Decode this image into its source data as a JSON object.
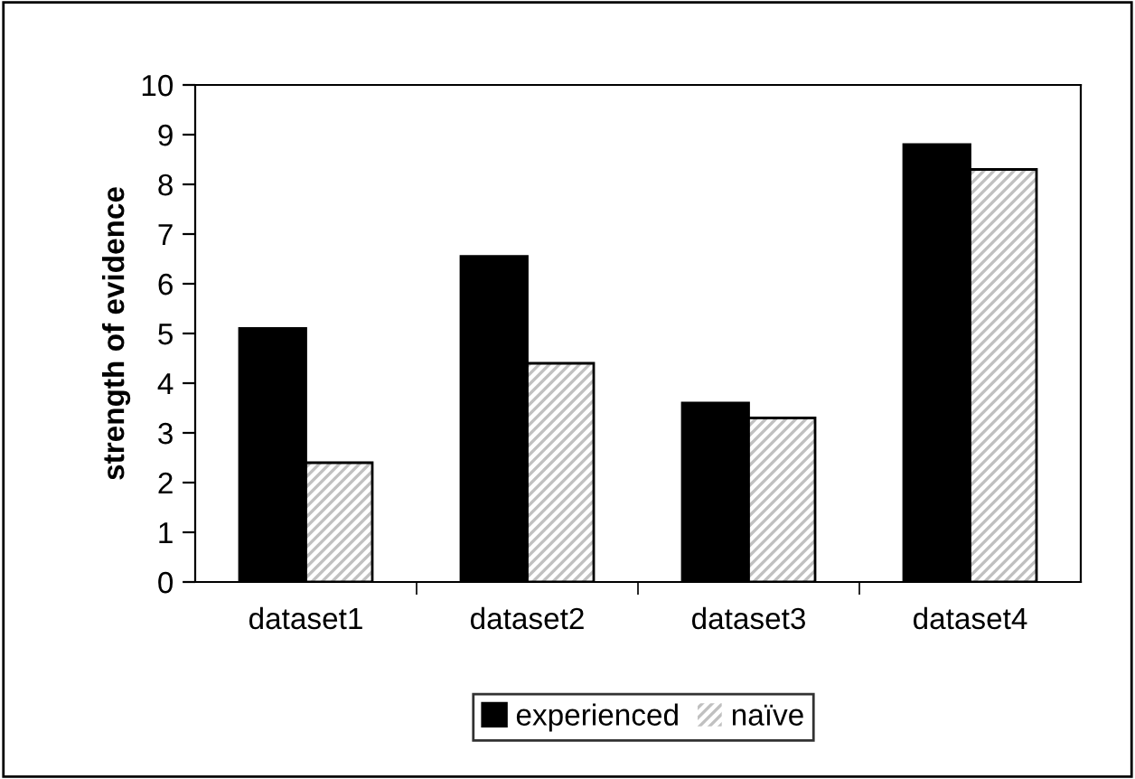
{
  "chart_data": {
    "type": "bar",
    "ylabel": "strength of evidence",
    "categories": [
      "dataset1",
      "dataset2",
      "dataset3",
      "dataset4"
    ],
    "series": [
      {
        "name": "experienced",
        "color": "#000000",
        "values": [
          5.1,
          6.55,
          3.6,
          8.8
        ]
      },
      {
        "name": "naïve",
        "color": "#c0c0c0",
        "values": [
          2.4,
          4.4,
          3.3,
          8.3
        ]
      }
    ],
    "ylim": [
      0,
      10
    ],
    "yticks": [
      0,
      1,
      2,
      3,
      4,
      5,
      6,
      7,
      8,
      9,
      10
    ],
    "legend": "bottom",
    "grid": false
  }
}
